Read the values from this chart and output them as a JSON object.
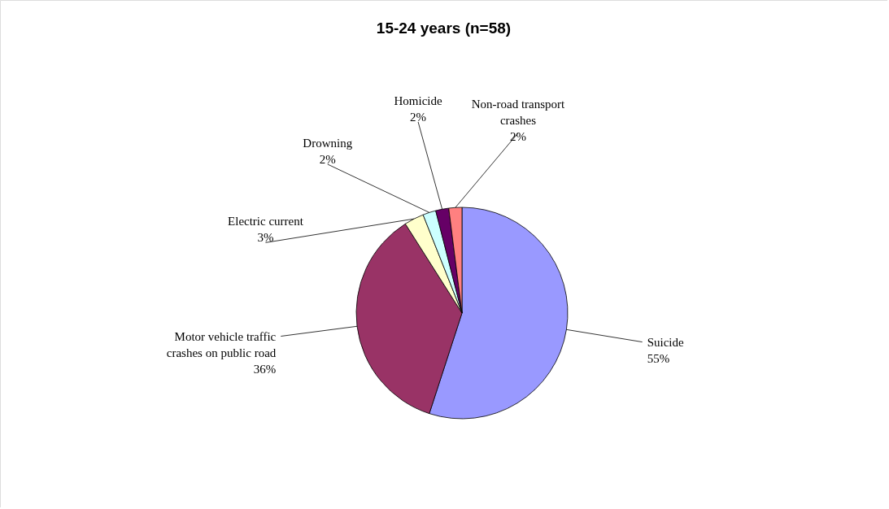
{
  "chart_data": {
    "type": "pie",
    "title": "15-24 years (n=58)",
    "categories": [
      "Suicide",
      "Motor vehicle traffic crashes on public road",
      "Electric current",
      "Drowning",
      "Homicide",
      "Non-road transport crashes"
    ],
    "values": [
      55,
      36,
      3,
      2,
      2,
      2
    ],
    "value_labels": [
      "55%",
      "36%",
      "3%",
      "2%",
      "2%",
      "2%"
    ],
    "colors": [
      "#9999ff",
      "#993366",
      "#ffffcc",
      "#ccffff",
      "#660066",
      "#ff8080"
    ]
  }
}
